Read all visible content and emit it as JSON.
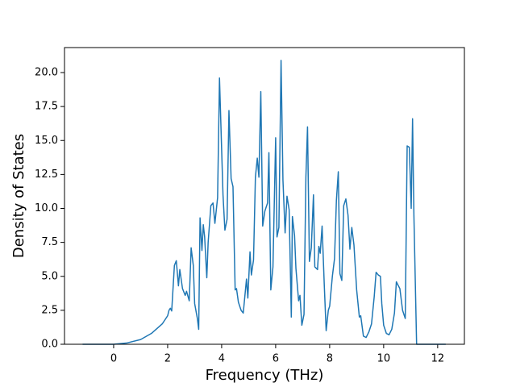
{
  "chart_data": {
    "type": "line",
    "xlabel": "Frequency (THz)",
    "ylabel": "Density of States",
    "color": "#1f77b4",
    "x": [
      -1.15,
      0,
      0.5,
      1.0,
      1.4,
      1.8,
      2.0,
      2.05,
      2.1,
      2.15,
      2.25,
      2.32,
      2.4,
      2.45,
      2.55,
      2.65,
      2.7,
      2.8,
      2.87,
      2.95,
      3.0,
      3.1,
      3.15,
      3.2,
      3.27,
      3.32,
      3.37,
      3.45,
      3.5,
      3.6,
      3.68,
      3.75,
      3.85,
      3.92,
      4.05,
      4.12,
      4.2,
      4.27,
      4.35,
      4.42,
      4.5,
      4.55,
      4.62,
      4.72,
      4.8,
      4.92,
      4.97,
      5.05,
      5.1,
      5.18,
      5.25,
      5.32,
      5.38,
      5.45,
      5.52,
      5.6,
      5.7,
      5.75,
      5.82,
      5.9,
      6.0,
      6.05,
      6.12,
      6.2,
      6.27,
      6.35,
      6.42,
      6.5,
      6.58,
      6.62,
      6.7,
      6.75,
      6.85,
      6.9,
      6.97,
      7.05,
      7.12,
      7.18,
      7.25,
      7.32,
      7.4,
      7.45,
      7.55,
      7.6,
      7.65,
      7.72,
      7.8,
      7.87,
      7.95,
      8.0,
      8.1,
      8.18,
      8.25,
      8.32,
      8.38,
      8.45,
      8.52,
      8.6,
      8.68,
      8.75,
      8.82,
      8.9,
      9.0,
      9.1,
      9.15,
      9.25,
      9.35,
      9.45,
      9.55,
      9.65,
      9.72,
      9.8,
      9.88,
      9.93,
      10.0,
      10.1,
      10.2,
      10.3,
      10.4,
      10.47,
      10.52,
      10.6,
      10.7,
      10.8,
      10.87,
      10.95,
      11.02,
      11.07,
      11.12,
      11.22,
      12.3
    ],
    "values": [
      0,
      0,
      0.1,
      0.35,
      0.8,
      1.5,
      2.1,
      2.5,
      2.65,
      2.45,
      5.8,
      6.15,
      4.3,
      5.5,
      4.1,
      3.6,
      3.9,
      3.2,
      7.1,
      5.8,
      3.0,
      1.9,
      1.1,
      9.3,
      6.9,
      8.8,
      7.9,
      4.9,
      7.5,
      10.2,
      10.4,
      8.9,
      10.8,
      19.6,
      11.0,
      8.4,
      9.2,
      17.2,
      12.2,
      11.6,
      4.0,
      4.1,
      3.1,
      2.5,
      2.3,
      4.8,
      3.4,
      6.8,
      5.1,
      6.2,
      12.3,
      13.7,
      12.3,
      18.6,
      8.7,
      9.8,
      10.4,
      14.1,
      4.0,
      5.7,
      15.2,
      7.9,
      8.6,
      20.9,
      12.1,
      8.2,
      10.9,
      9.9,
      2.0,
      9.4,
      8.0,
      5.6,
      3.2,
      3.6,
      1.4,
      2.2,
      12.3,
      16.0,
      6.1,
      7.1,
      11.0,
      5.7,
      5.5,
      7.2,
      6.7,
      8.7,
      4.4,
      1.0,
      2.5,
      2.8,
      5.0,
      6.3,
      10.6,
      12.7,
      5.2,
      4.7,
      10.2,
      10.7,
      9.5,
      7.0,
      8.6,
      7.3,
      4.0,
      2.0,
      2.1,
      0.6,
      0.5,
      0.9,
      1.5,
      3.5,
      5.3,
      5.1,
      5.0,
      3.0,
      1.4,
      0.8,
      0.7,
      1.1,
      2.3,
      4.6,
      4.4,
      4.1,
      2.5,
      1.9,
      14.6,
      14.5,
      10.0,
      16.6,
      9.5,
      0,
      0
    ],
    "xlim": [
      -1.82,
      12.99
    ],
    "ylim": [
      0,
      21.84
    ],
    "xticks": [
      0,
      2,
      4,
      6,
      8,
      10,
      12
    ],
    "yticks": [
      {
        "value": 0,
        "label": "0.0"
      },
      {
        "value": 2.5,
        "label": "2.5"
      },
      {
        "value": 5,
        "label": "5.0"
      },
      {
        "value": 7.5,
        "label": "7.5"
      },
      {
        "value": 10,
        "label": "10.0"
      },
      {
        "value": 12.5,
        "label": "12.5"
      },
      {
        "value": 15,
        "label": "15.0"
      },
      {
        "value": 17.5,
        "label": "17.5"
      },
      {
        "value": 20,
        "label": "20.0"
      }
    ]
  }
}
